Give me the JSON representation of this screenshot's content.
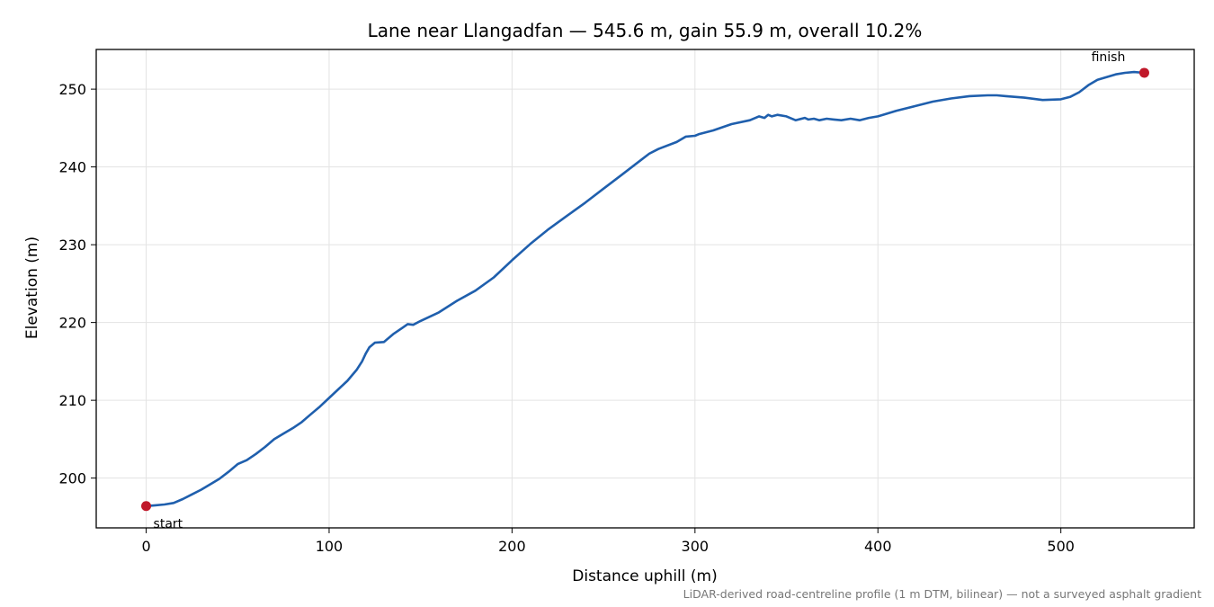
{
  "chart_data": {
    "type": "line",
    "title": "Lane near Llangadfan — 545.6 m, gain 55.9 m, overall 10.2%",
    "xlabel": "Distance uphill (m)",
    "ylabel": "Elevation (m)",
    "footnote": "LiDAR-derived road-centreline profile (1 m DTM, bilinear) — not a surveyed asphalt gradient",
    "xlim": [
      -27.3,
      572.9
    ],
    "ylim": [
      193.6,
      255.1
    ],
    "xticks": [
      0,
      100,
      200,
      300,
      400,
      500
    ],
    "yticks": [
      200,
      210,
      220,
      230,
      240,
      250
    ],
    "grid": true,
    "line_color": "#1f5fad",
    "marker_color": "#c0182a",
    "series": [
      {
        "x": [
          0,
          5,
          10,
          15,
          20,
          25,
          30,
          35,
          40,
          45,
          50,
          55,
          60,
          65,
          70,
          75,
          80,
          85,
          90,
          95,
          100,
          105,
          110,
          115,
          118,
          120,
          122,
          125,
          130,
          135,
          140,
          143,
          146,
          150,
          160,
          170,
          180,
          190,
          200,
          210,
          220,
          230,
          240,
          250,
          260,
          270,
          275,
          280,
          290,
          295,
          300,
          302,
          310,
          320,
          330,
          335,
          338,
          340,
          342,
          345,
          350,
          355,
          360,
          362,
          365,
          368,
          372,
          376,
          380,
          385,
          390,
          395,
          400,
          410,
          420,
          430,
          440,
          450,
          460,
          465,
          470,
          480,
          490,
          500,
          505,
          510,
          515,
          520,
          530,
          535,
          540,
          545.6
        ],
        "y": [
          196.4,
          196.5,
          196.6,
          196.8,
          197.3,
          197.9,
          198.5,
          199.2,
          199.9,
          200.8,
          201.8,
          202.3,
          203.1,
          204.0,
          205.0,
          205.7,
          206.4,
          207.2,
          208.2,
          209.2,
          210.3,
          211.4,
          212.5,
          213.9,
          215.0,
          216.0,
          216.8,
          217.4,
          217.5,
          218.5,
          219.3,
          219.8,
          219.7,
          220.2,
          221.3,
          222.8,
          224.1,
          225.8,
          228.0,
          230.1,
          232.0,
          233.7,
          235.4,
          237.2,
          239.0,
          240.8,
          241.7,
          242.3,
          243.2,
          243.9,
          244.0,
          244.2,
          244.7,
          245.5,
          246.0,
          246.5,
          246.3,
          246.7,
          246.5,
          246.7,
          246.5,
          246.0,
          246.3,
          246.1,
          246.2,
          246.0,
          246.2,
          246.1,
          246.0,
          246.2,
          246.0,
          246.3,
          246.5,
          247.2,
          247.8,
          248.4,
          248.8,
          249.1,
          249.2,
          249.2,
          249.1,
          248.9,
          248.6,
          248.7,
          249.0,
          249.6,
          250.5,
          251.2,
          251.9,
          252.1,
          252.2,
          252.1
        ]
      }
    ],
    "annotations": [
      {
        "text": "start",
        "x": 0,
        "y": 196.4
      },
      {
        "text": "finish",
        "x": 545.6,
        "y": 252.1
      }
    ]
  }
}
